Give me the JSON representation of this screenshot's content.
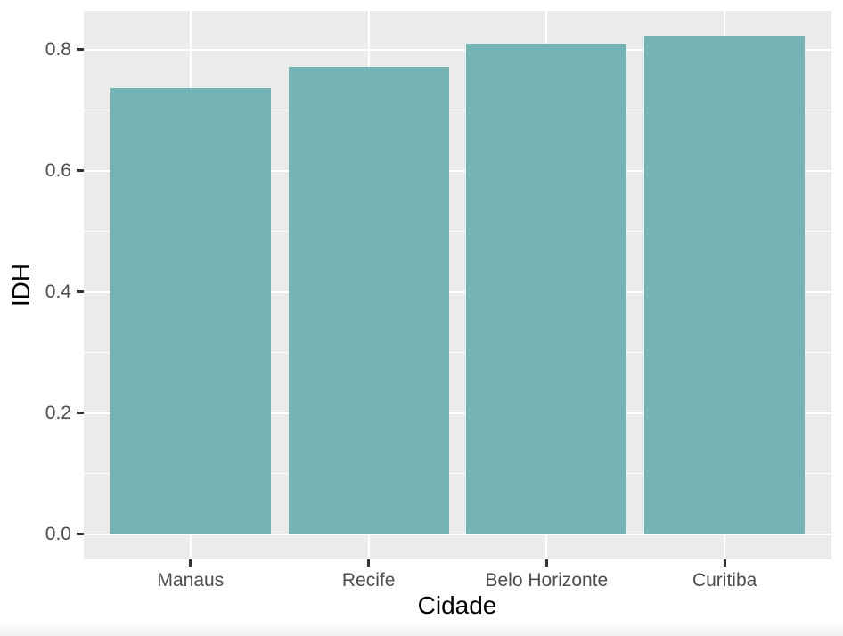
{
  "figure": {
    "background": "#ffffff"
  },
  "chart_data": {
    "type": "bar",
    "title": "",
    "xlabel": "Cidade",
    "ylabel": "IDH",
    "categories": [
      "Manaus",
      "Recife",
      "Belo Horizonte",
      "Curitiba"
    ],
    "values": [
      0.737,
      0.772,
      0.81,
      0.823
    ],
    "yticks": [
      0.0,
      0.2,
      0.4,
      0.6,
      0.8
    ],
    "ytick_labels": [
      "0.0",
      "0.2",
      "0.4",
      "0.6",
      "0.8"
    ],
    "yticks_minor": [
      0.1,
      0.3,
      0.5,
      0.7
    ],
    "ylim": [
      0,
      0.823
    ],
    "ylim_display": [
      -0.0412,
      0.8642
    ],
    "bar_width_fraction": 0.9,
    "grid": "on",
    "legend": "none",
    "style": {
      "bar_fill": "#75b4b4",
      "panel_background": "#ebebeb",
      "grid_color": "#ffffff",
      "tick_label_color": "#4d4d4d",
      "axis_title_color": "#000000",
      "tick_mark_color": "#333333"
    }
  }
}
